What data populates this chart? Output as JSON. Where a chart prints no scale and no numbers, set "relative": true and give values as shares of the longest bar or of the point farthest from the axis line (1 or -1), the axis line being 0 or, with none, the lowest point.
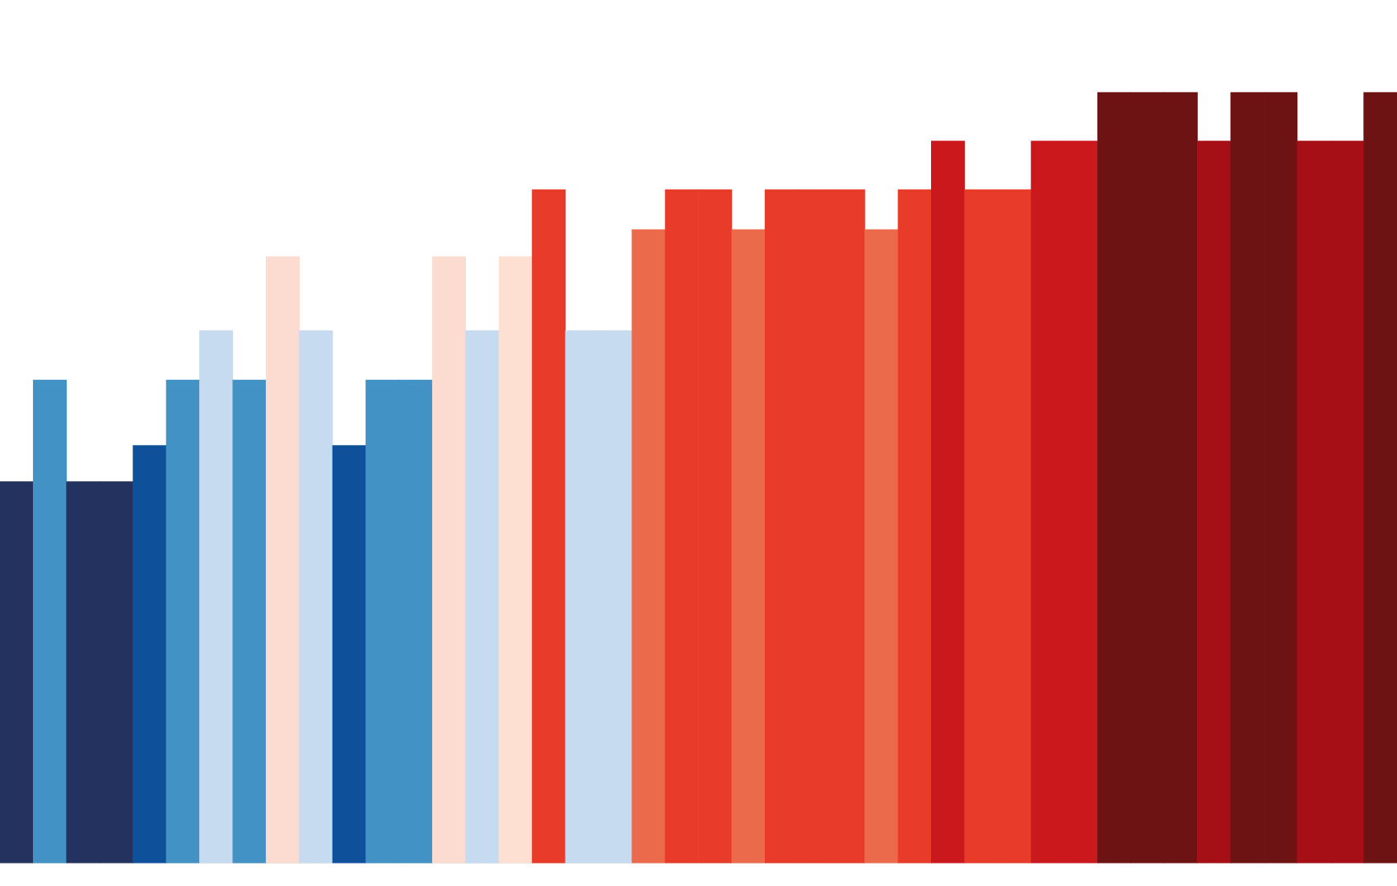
{
  "chart_data": {
    "type": "bar",
    "relative": true,
    "legend": false,
    "categories": [
      null,
      null,
      null,
      null,
      null,
      null,
      null,
      null,
      null,
      null,
      null,
      null,
      null,
      null,
      null,
      null,
      null,
      null,
      null,
      null,
      null,
      null,
      null,
      null,
      null,
      null,
      null,
      null,
      null,
      null,
      null,
      null,
      null,
      null,
      null,
      null,
      null,
      null,
      null,
      null,
      null,
      null
    ],
    "values": [
      0.495,
      0.627,
      0.495,
      0.495,
      0.542,
      0.627,
      0.691,
      0.627,
      0.787,
      0.691,
      0.542,
      0.627,
      0.627,
      0.787,
      0.691,
      0.787,
      0.874,
      0.691,
      0.691,
      0.822,
      0.874,
      0.874,
      0.822,
      0.874,
      0.874,
      0.874,
      0.822,
      0.874,
      0.937,
      0.874,
      0.874,
      0.937,
      0.937,
      1,
      1,
      1,
      0.937,
      1,
      1,
      0.937,
      0.937,
      1
    ],
    "colors": [
      "#23325f",
      "#4292c6",
      "#23325f",
      "#23325f",
      "#0f509a",
      "#4292c6",
      "#c6dbef",
      "#4292c6",
      "#fcdcd0",
      "#c6dbef",
      "#0f509a",
      "#4292c6",
      "#4292c6",
      "#fcdcd0",
      "#c6dbef",
      "#fee0d2",
      "#e83b2a",
      "#c6dbef",
      "#c6dbef",
      "#ec6a4c",
      "#e83b2a",
      "#e83b2a",
      "#ec6a4c",
      "#e83b2a",
      "#e83b2a",
      "#e83b2a",
      "#ec6a4c",
      "#e83b2a",
      "#cb181d",
      "#e83b2a",
      "#e83b2a",
      "#cb181d",
      "#cb181d",
      "#6e1314",
      "#6e1314",
      "#6e1314",
      "#a50f15",
      "#6e1314",
      "#6e1314",
      "#a50f15",
      "#a50f15",
      "#6e1314"
    ]
  }
}
